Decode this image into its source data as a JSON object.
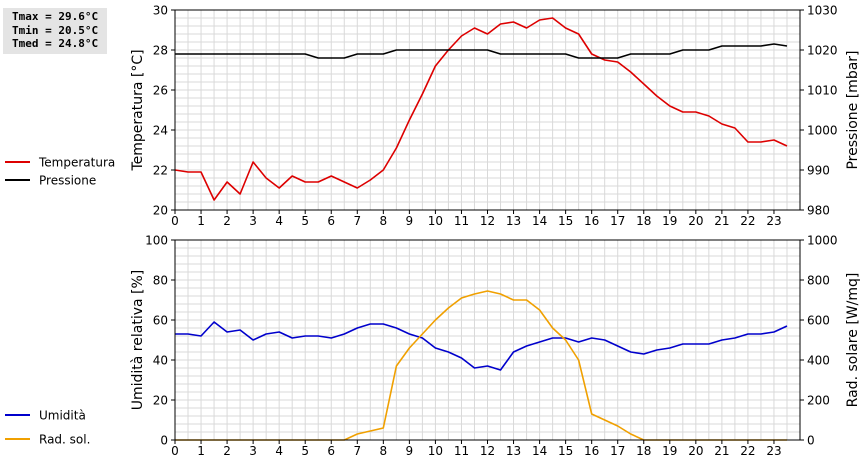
{
  "stats": {
    "tmax": "Tmax = 29.6°C",
    "tmin": "Tmin = 20.5°C",
    "tmed": "Tmed = 24.8°C"
  },
  "chart_data": [
    {
      "type": "line",
      "ylabel": "Temperatura [°C]",
      "y2label": "Pressione [mbar]",
      "ylim": [
        20,
        30
      ],
      "y2lim": [
        980,
        1030
      ],
      "yticks": [
        20,
        22,
        24,
        26,
        28,
        30
      ],
      "y2ticks": [
        980,
        990,
        1000,
        1010,
        1020,
        1030
      ],
      "xlim": [
        0,
        24
      ],
      "xticks": [
        0,
        1,
        2,
        3,
        4,
        5,
        6,
        7,
        8,
        9,
        10,
        11,
        12,
        13,
        14,
        15,
        16,
        17,
        18,
        19,
        20,
        21,
        22,
        23
      ],
      "grid": true,
      "legend_position": "left",
      "series": [
        {
          "name": "Temperatura",
          "color": "#dd0000",
          "axis": "left",
          "x": [
            0,
            0.5,
            1,
            1.5,
            2,
            2.5,
            3,
            3.5,
            4,
            4.5,
            5,
            5.5,
            6,
            6.5,
            7,
            7.5,
            8,
            8.5,
            9,
            9.5,
            10,
            10.5,
            11,
            11.5,
            12,
            12.5,
            13,
            13.5,
            14,
            14.5,
            15,
            15.5,
            16,
            16.5,
            17,
            17.5,
            18,
            18.5,
            19,
            19.5,
            20,
            20.5,
            21,
            21.5,
            22,
            22.5,
            23,
            23.5
          ],
          "values": [
            22.0,
            21.9,
            21.9,
            20.5,
            21.4,
            20.8,
            22.4,
            21.6,
            21.1,
            21.7,
            21.4,
            21.4,
            21.7,
            21.4,
            21.1,
            21.5,
            22.0,
            23.1,
            24.5,
            25.8,
            27.2,
            28.0,
            28.7,
            29.1,
            28.8,
            29.3,
            29.4,
            29.1,
            29.5,
            29.6,
            29.1,
            28.8,
            27.8,
            27.5,
            27.4,
            26.9,
            26.3,
            25.7,
            25.2,
            24.9,
            24.9,
            24.7,
            24.3,
            24.1,
            23.4,
            23.4,
            23.5,
            23.2
          ]
        },
        {
          "name": "Pressione",
          "color": "#000000",
          "axis": "right",
          "x": [
            0,
            0.5,
            1,
            1.5,
            2,
            2.5,
            3,
            3.5,
            4,
            4.5,
            5,
            5.5,
            6,
            6.5,
            7,
            7.5,
            8,
            8.5,
            9,
            9.5,
            10,
            10.5,
            11,
            11.5,
            12,
            12.5,
            13,
            13.5,
            14,
            14.5,
            15,
            15.5,
            16,
            16.5,
            17,
            17.5,
            18,
            18.5,
            19,
            19.5,
            20,
            20.5,
            21,
            21.5,
            22,
            22.5,
            23,
            23.5
          ],
          "values": [
            1019,
            1019,
            1019,
            1019,
            1019,
            1019,
            1019,
            1019,
            1019,
            1019,
            1019,
            1018,
            1018,
            1018,
            1019,
            1019,
            1019,
            1020,
            1020,
            1020,
            1020,
            1020,
            1020,
            1020,
            1020,
            1019,
            1019,
            1019,
            1019,
            1019,
            1019,
            1018,
            1018,
            1018,
            1018,
            1019,
            1019,
            1019,
            1019,
            1020,
            1020,
            1020,
            1021,
            1021,
            1021,
            1021,
            1021.5,
            1021
          ]
        }
      ]
    },
    {
      "type": "line",
      "ylabel": "Umidità relativa [%]",
      "y2label": "Rad. solare [W/mq]",
      "ylim": [
        0,
        100
      ],
      "y2lim": [
        0,
        1000
      ],
      "yticks": [
        0,
        20,
        40,
        60,
        80,
        100
      ],
      "y2ticks": [
        0,
        200,
        400,
        600,
        800,
        1000
      ],
      "xlim": [
        0,
        24
      ],
      "xticks": [
        0,
        1,
        2,
        3,
        4,
        5,
        6,
        7,
        8,
        9,
        10,
        11,
        12,
        13,
        14,
        15,
        16,
        17,
        18,
        19,
        20,
        21,
        22,
        23
      ],
      "grid": true,
      "legend_position": "left",
      "series": [
        {
          "name": "Umidità",
          "color": "#0000cc",
          "axis": "left",
          "x": [
            0,
            0.5,
            1,
            1.5,
            2,
            2.5,
            3,
            3.5,
            4,
            4.5,
            5,
            5.5,
            6,
            6.5,
            7,
            7.5,
            8,
            8.5,
            9,
            9.5,
            10,
            10.5,
            11,
            11.5,
            12,
            12.5,
            13,
            13.5,
            14,
            14.5,
            15,
            15.5,
            16,
            16.5,
            17,
            17.5,
            18,
            18.5,
            19,
            19.5,
            20,
            20.5,
            21,
            21.5,
            22,
            22.5,
            23,
            23.5
          ],
          "values": [
            53,
            53,
            52,
            59,
            54,
            55,
            50,
            53,
            54,
            51,
            52,
            52,
            51,
            53,
            56,
            58,
            58,
            56,
            53,
            51,
            46,
            44,
            41,
            36,
            37,
            35,
            44,
            47,
            49,
            51,
            51,
            49,
            51,
            50,
            47,
            44,
            43,
            45,
            46,
            48,
            48,
            48,
            50,
            51,
            53,
            53,
            54,
            57
          ]
        },
        {
          "name": "Rad. sol.",
          "color": "#f0a000",
          "axis": "right",
          "x": [
            0,
            0.5,
            1,
            1.5,
            2,
            2.5,
            3,
            3.5,
            4,
            4.5,
            5,
            5.5,
            6,
            6.5,
            7,
            7.5,
            8,
            8.5,
            9,
            9.5,
            10,
            10.5,
            11,
            11.5,
            12,
            12.5,
            13,
            13.5,
            14,
            14.5,
            15,
            15.5,
            16,
            16.5,
            17,
            17.5,
            18,
            18.5,
            19,
            19.5,
            20,
            20.5,
            21,
            21.5,
            22,
            22.5,
            23,
            23.5
          ],
          "values": [
            0,
            0,
            0,
            0,
            0,
            0,
            0,
            0,
            0,
            0,
            0,
            0,
            0,
            0,
            30,
            45,
            60,
            370,
            460,
            530,
            600,
            660,
            710,
            730,
            745,
            730,
            700,
            700,
            650,
            560,
            500,
            400,
            130,
            100,
            70,
            30,
            0,
            0,
            0,
            0,
            0,
            0,
            0,
            0,
            0,
            0,
            0,
            0
          ]
        }
      ]
    }
  ]
}
